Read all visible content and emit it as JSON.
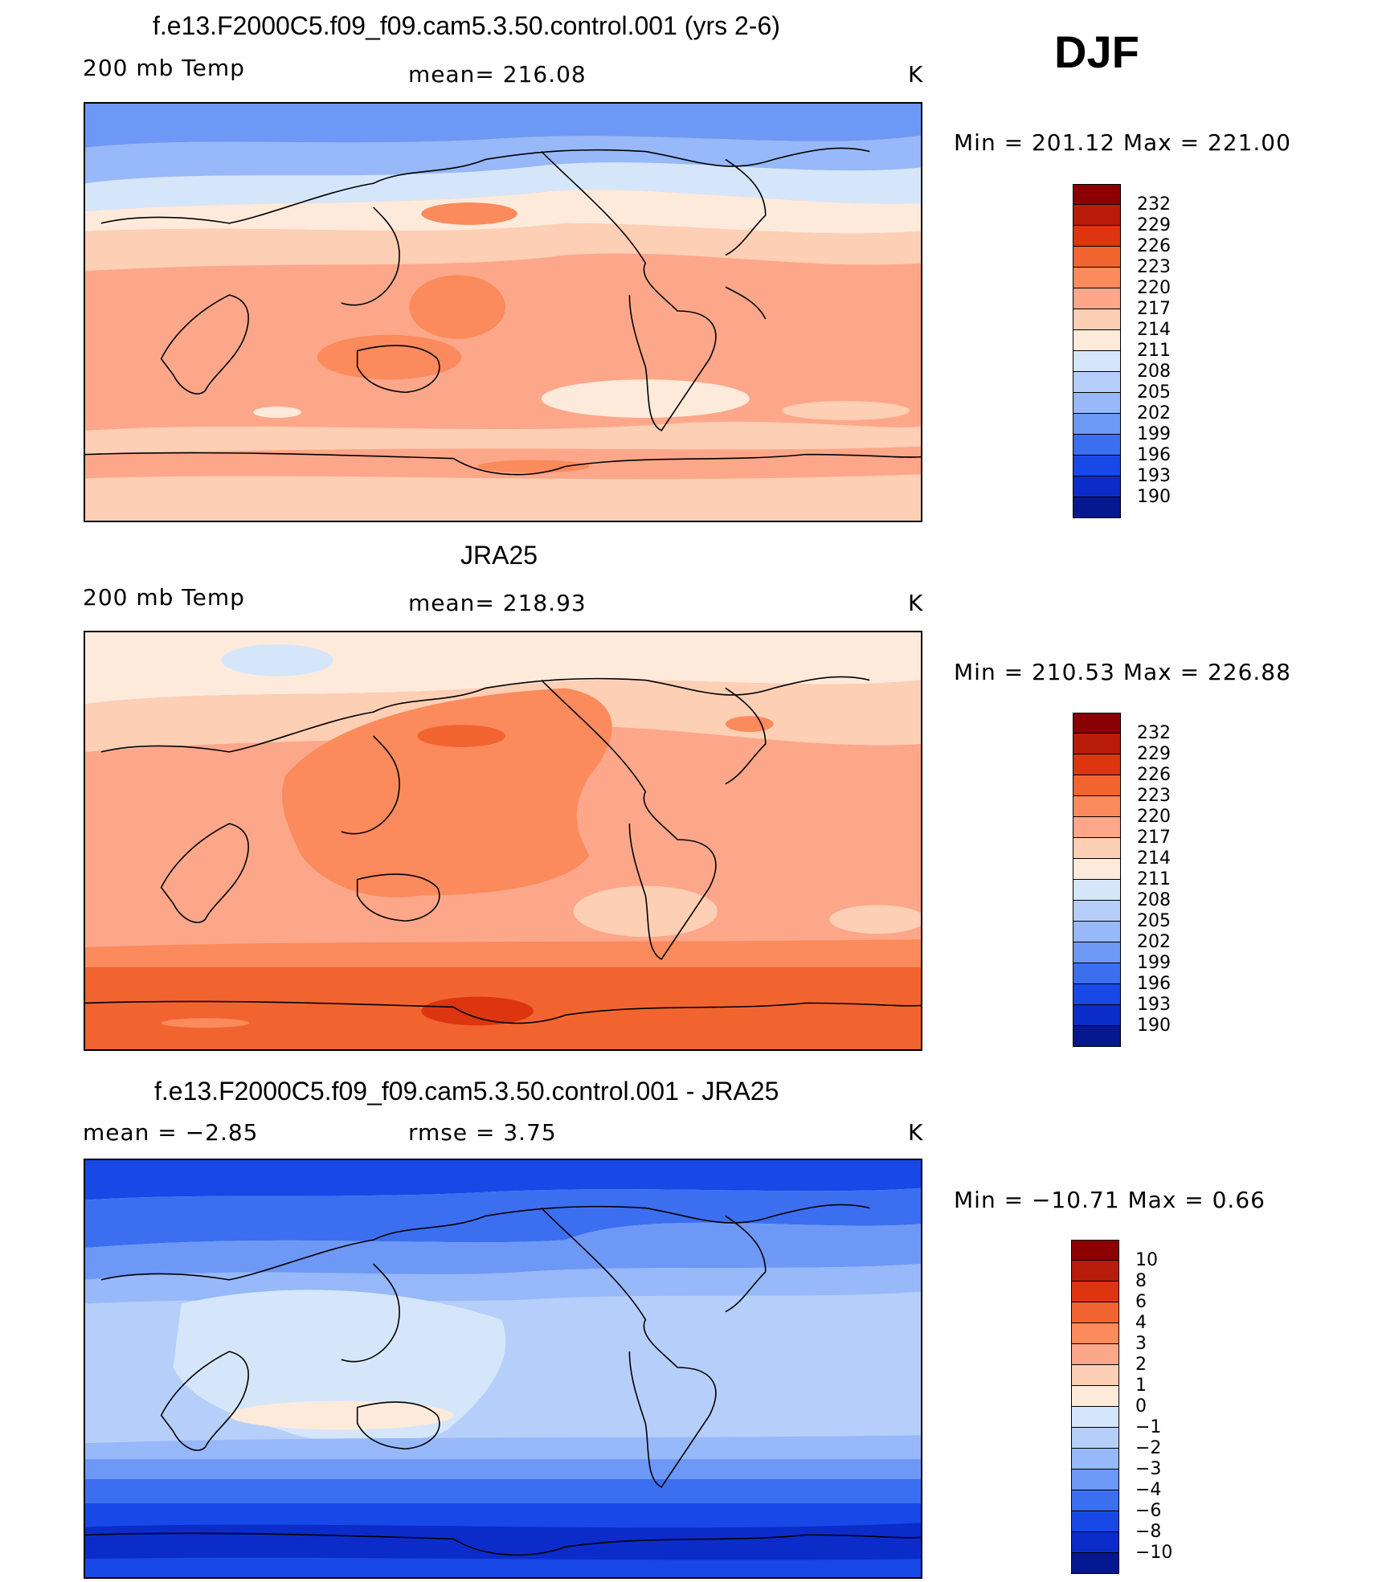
{
  "season": "DJF",
  "panels": [
    {
      "id": "model",
      "title": "f.e13.F2000C5.f09_f09.cam5.3.50.control.001 (yrs 2-6)",
      "left_label": "200 mb Temp",
      "center_label": "mean=  216.08",
      "units": "K",
      "minmax": "Min  =  201.12  Max  =  221.00",
      "bg": "#fca78a",
      "colorbar": {
        "colors": [
          "#8b0000",
          "#b81c0a",
          "#dc3510",
          "#f2642f",
          "#fb8a5c",
          "#fca78a",
          "#fdcfb5",
          "#feeadb",
          "#d5e6fa",
          "#b5cffa",
          "#97b8f9",
          "#6e98f5",
          "#3b6ff0",
          "#1848e6",
          "#0b2cc9",
          "#06188f"
        ],
        "ticks": [
          "232",
          "229",
          "226",
          "223",
          "220",
          "217",
          "214",
          "211",
          "208",
          "205",
          "202",
          "199",
          "196",
          "193",
          "190"
        ]
      }
    },
    {
      "id": "obs",
      "title": "JRA25",
      "left_label": "200 mb Temp",
      "center_label": "mean=  218.93",
      "units": "K",
      "minmax": "Min  =  210.53  Max  =  226.88",
      "bg": "#fca78a",
      "colorbar": {
        "colors": [
          "#8b0000",
          "#b81c0a",
          "#dc3510",
          "#f2642f",
          "#fb8a5c",
          "#fca78a",
          "#fdcfb5",
          "#feeadb",
          "#d5e6fa",
          "#b5cffa",
          "#97b8f9",
          "#6e98f5",
          "#3b6ff0",
          "#1848e6",
          "#0b2cc9",
          "#06188f"
        ],
        "ticks": [
          "232",
          "229",
          "226",
          "223",
          "220",
          "217",
          "214",
          "211",
          "208",
          "205",
          "202",
          "199",
          "196",
          "193",
          "190"
        ]
      }
    },
    {
      "id": "diff",
      "title": "f.e13.F2000C5.f09_f09.cam5.3.50.control.001 - JRA25",
      "left_label": "mean  =     −2.85",
      "center_label": "rmse  =     3.75",
      "units": "K",
      "minmax": "Min  =  −10.71  Max  =     0.66",
      "bg": "#b5cffa",
      "colorbar": {
        "colors": [
          "#8b0000",
          "#b81c0a",
          "#dc3510",
          "#f2642f",
          "#fb8a5c",
          "#fca78a",
          "#fdcfb5",
          "#feeadb",
          "#d5e6fa",
          "#b5cffa",
          "#97b8f9",
          "#6e98f5",
          "#3b6ff0",
          "#1848e6",
          "#0b2cc9",
          "#06188f"
        ],
        "ticks": [
          "10",
          "8",
          "6",
          "4",
          "3",
          "2",
          "1",
          "0",
          "−1",
          "−2",
          "−3",
          "−4",
          "−6",
          "−8",
          "−10"
        ]
      }
    }
  ]
}
